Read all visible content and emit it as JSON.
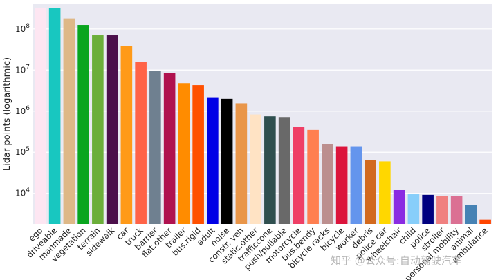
{
  "chart_data": {
    "type": "bar",
    "ylabel": "Lidar points (logarithmic)",
    "yscale": "log",
    "ylim": [
      1800,
      400000000
    ],
    "yticks": [
      {
        "value": 10000,
        "base": "10",
        "exp": "4"
      },
      {
        "value": 100000,
        "base": "10",
        "exp": "5"
      },
      {
        "value": 1000000,
        "base": "10",
        "exp": "6"
      },
      {
        "value": 10000000,
        "base": "10",
        "exp": "7"
      },
      {
        "value": 100000000,
        "base": "10",
        "exp": "8"
      }
    ],
    "grid": true,
    "background": "#e9e9f2",
    "categories": [
      "ego",
      "driveable",
      "manmade",
      "vegetation",
      "terrain",
      "sidewalk",
      "car",
      "truck",
      "barrier",
      "flat.other",
      "trailer",
      "bus.rigid",
      "adult",
      "noise",
      "constr. veh",
      "static.other",
      "trafficcone",
      "push/pullable",
      "motorcycle",
      "bus.bendy",
      "bicycle racks",
      "bicycle",
      "worker",
      "debris",
      "police car",
      "wheelchair",
      "child",
      "police",
      "stroller",
      "personal mobility",
      "animal",
      "ambulance"
    ],
    "values": [
      330000000,
      320000000,
      180000000,
      125000000,
      70000000,
      70000000,
      38000000,
      16000000,
      9500000,
      8500000,
      4800000,
      4300000,
      2100000,
      2000000,
      1550000,
      830000,
      750000,
      720000,
      420000,
      350000,
      160000,
      140000,
      140000,
      65000,
      60000,
      12000,
      9500,
      9200,
      8700,
      8700,
      5300,
      2300
    ],
    "colors": [
      "#fde6f2",
      "#18c7c0",
      "#deb887",
      "#0aa51f",
      "#6bae3a",
      "#4b0f4b",
      "#ff9a18",
      "#ff6347",
      "#6f8090",
      "#b0124f",
      "#ff8c00",
      "#ff5000",
      "#0000e6",
      "#000000",
      "#e9964a",
      "#ffe3c4",
      "#2f4f4f",
      "#696969",
      "#ef3f66",
      "#ff7f50",
      "#bc8f8f",
      "#dc143c",
      "#6495ed",
      "#d2691e",
      "#ffd700",
      "#8a2be2",
      "#87cefa",
      "#000080",
      "#f08080",
      "#db7093",
      "#4682b4",
      "#ff4500"
    ]
  },
  "watermark": "知乎 @公众号:自动驾驶汽车"
}
